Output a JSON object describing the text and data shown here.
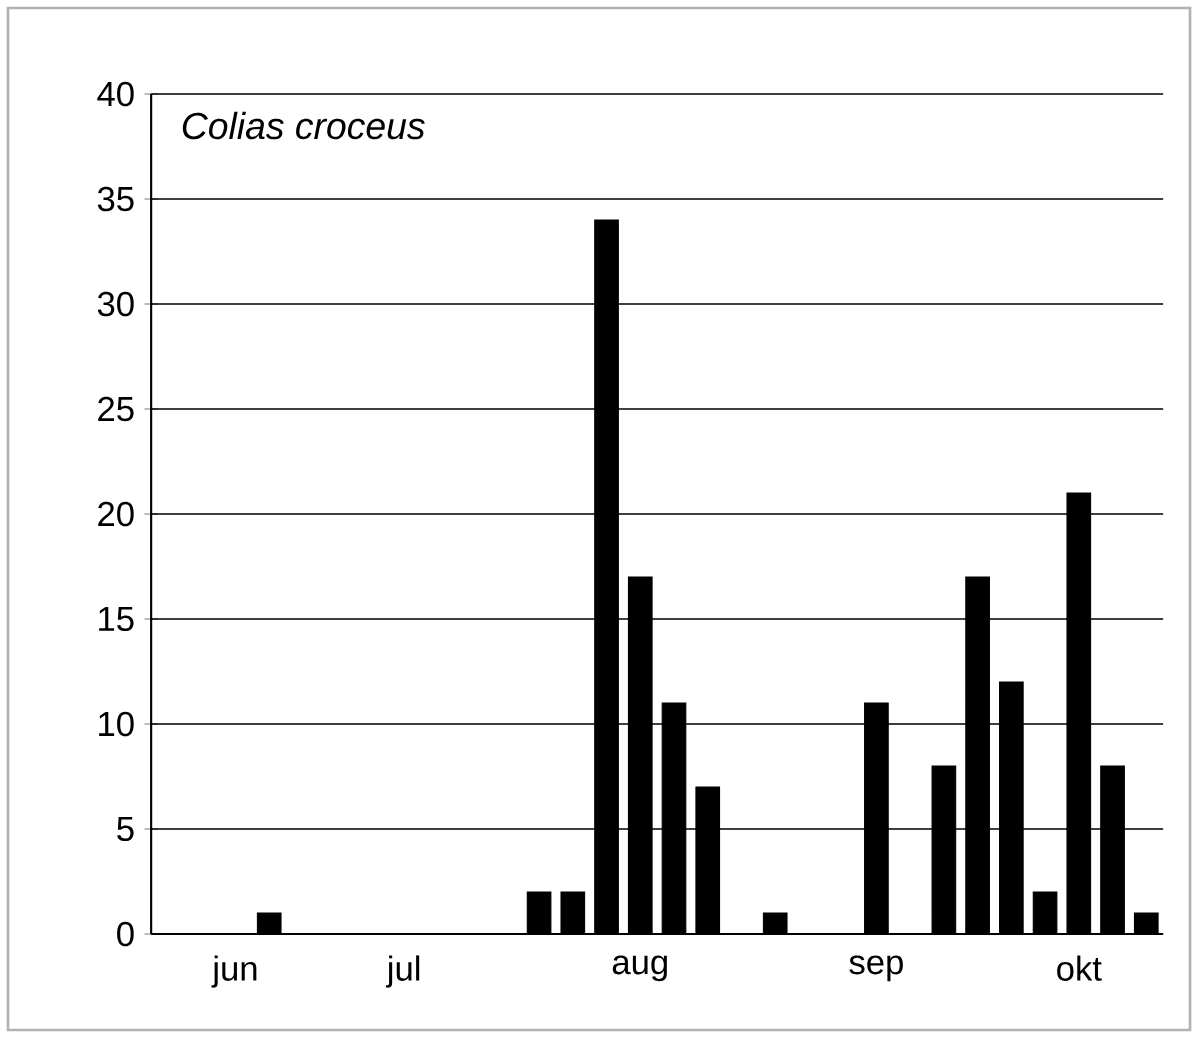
{
  "chart_data": {
    "type": "bar",
    "title": "Colias croceus",
    "categories": [
      null,
      null,
      "jun",
      null,
      null,
      null,
      null,
      "jul",
      null,
      null,
      null,
      null,
      null,
      null,
      "aug",
      null,
      null,
      null,
      null,
      null,
      null,
      "sep",
      null,
      null,
      null,
      null,
      null,
      "okt",
      null,
      null
    ],
    "values": [
      0,
      0,
      0,
      1,
      0,
      0,
      0,
      0,
      0,
      0,
      0,
      2,
      2,
      34,
      17,
      11,
      7,
      0,
      1,
      0,
      0,
      11,
      0,
      8,
      17,
      12,
      2,
      21,
      8,
      1
    ],
    "color": "#000000",
    "ylim": [
      0,
      40
    ],
    "yticks": [
      0,
      5,
      10,
      15,
      20,
      25,
      30,
      35,
      40
    ],
    "grid": "y"
  }
}
